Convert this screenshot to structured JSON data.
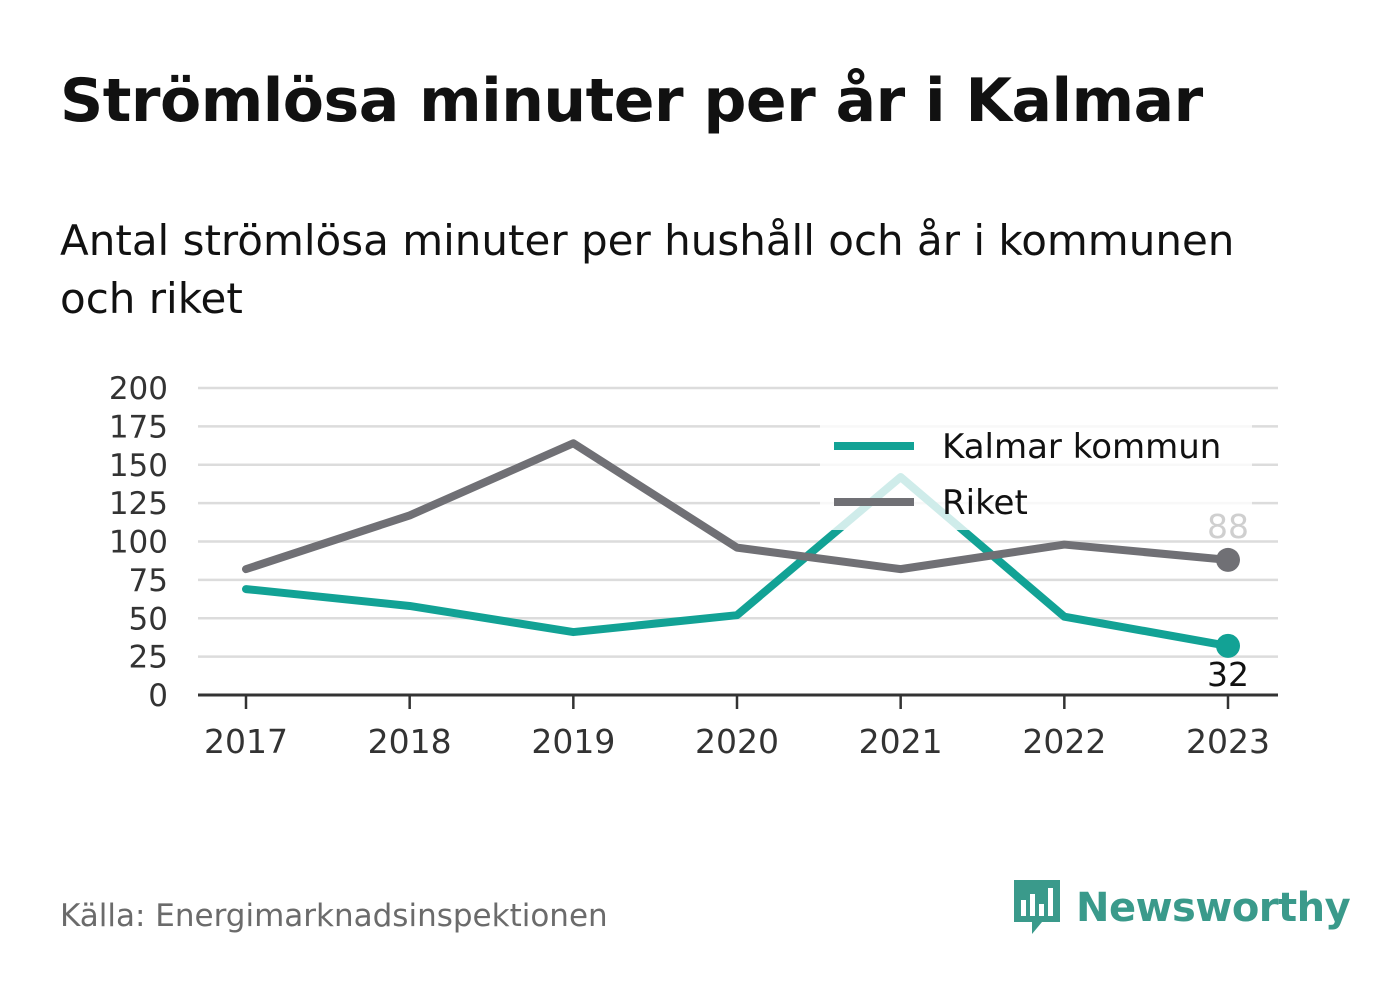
{
  "title": "Strömlösa minuter per år i Kalmar",
  "subtitle": "Antal strömlösa minuter per hushåll och år i kommunen och riket",
  "source": "Källa: Energimarknadsinspektionen",
  "brand": {
    "name": "Newsworthy",
    "icon": "newsworthy-logo-icon",
    "color": "#3a9a8b"
  },
  "chart_data": {
    "type": "line",
    "title": "",
    "xlabel": "",
    "ylabel": "",
    "categories": [
      "2017",
      "2018",
      "2019",
      "2020",
      "2021",
      "2022",
      "2023"
    ],
    "ylim": [
      0,
      200
    ],
    "yticks": [
      "0",
      "25",
      "50",
      "75",
      "100",
      "125",
      "150",
      "175",
      "200"
    ],
    "grid": true,
    "legend_position": "top-right",
    "series": [
      {
        "name": "Kalmar kommun",
        "color": "#12a295",
        "values": [
          69,
          58,
          41,
          52,
          142,
          51,
          32
        ],
        "end_label": "32"
      },
      {
        "name": "Riket",
        "color": "#707075",
        "values": [
          82,
          117,
          164,
          96,
          82,
          98,
          88
        ],
        "end_label": "88"
      }
    ]
  }
}
